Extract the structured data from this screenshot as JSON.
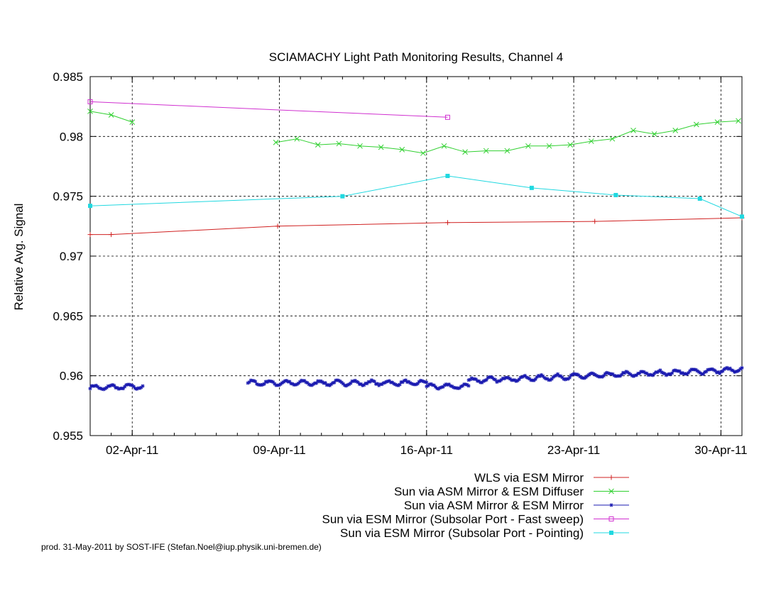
{
  "chart_data": {
    "type": "line",
    "title": "SCIAMACHY Light Path Monitoring Results, Channel 4",
    "xlabel": "",
    "ylabel": "Relative Avg. Signal",
    "x_unit": "date",
    "xlim": [
      "2011-03-31T00:00",
      "2011-05-01T00:00"
    ],
    "ylim": [
      0.955,
      0.985
    ],
    "grid": true,
    "legend_position": "bottom-right",
    "x_ticks": [
      {
        "date": "2011-04-02T00:00",
        "label": "02-Apr-11"
      },
      {
        "date": "2011-04-09T00:00",
        "label": "09-Apr-11"
      },
      {
        "date": "2011-04-16T00:00",
        "label": "16-Apr-11"
      },
      {
        "date": "2011-04-23T00:00",
        "label": "23-Apr-11"
      },
      {
        "date": "2011-04-30T00:00",
        "label": "30-Apr-11"
      }
    ],
    "y_ticks": [
      "0.955",
      "0.96",
      "0.965",
      "0.97",
      "0.975",
      "0.98",
      "0.985"
    ],
    "series": [
      {
        "name": "WLS via ESM Mirror",
        "color": "#d02020",
        "marker": "plus",
        "points": [
          [
            "2011-03-31T00:00",
            0.9718
          ],
          [
            "2011-04-01T00:00",
            0.9718
          ],
          [
            "2011-04-08T22:00",
            0.9725
          ],
          [
            "2011-04-17T00:00",
            0.9728
          ],
          [
            "2011-04-24T00:00",
            0.9729
          ],
          [
            "2011-05-01T00:00",
            0.9732
          ]
        ]
      },
      {
        "name": "Sun via ASM Mirror & ESM Diffuser",
        "color": "#30d030",
        "marker": "cross",
        "segments": [
          [
            [
              "2011-03-31T00:00",
              0.9821
            ],
            [
              "2011-04-01T00:00",
              0.9818
            ],
            [
              "2011-04-02T00:00",
              0.9812
            ]
          ],
          [
            [
              "2011-04-08T20:00",
              0.9795
            ],
            [
              "2011-04-09T20:00",
              0.9798
            ],
            [
              "2011-04-10T20:00",
              0.9793
            ],
            [
              "2011-04-11T20:00",
              0.9794
            ],
            [
              "2011-04-12T20:00",
              0.9792
            ],
            [
              "2011-04-13T20:00",
              0.9791
            ],
            [
              "2011-04-14T20:00",
              0.9789
            ],
            [
              "2011-04-15T20:00",
              0.9786
            ],
            [
              "2011-04-16T20:00",
              0.9792
            ],
            [
              "2011-04-17T20:00",
              0.9787
            ],
            [
              "2011-04-18T20:00",
              0.9788
            ],
            [
              "2011-04-19T20:00",
              0.9788
            ],
            [
              "2011-04-20T20:00",
              0.9792
            ],
            [
              "2011-04-21T20:00",
              0.9792
            ],
            [
              "2011-04-22T20:00",
              0.9793
            ],
            [
              "2011-04-23T20:00",
              0.9796
            ],
            [
              "2011-04-24T20:00",
              0.9798
            ],
            [
              "2011-04-25T20:00",
              0.9805
            ],
            [
              "2011-04-26T20:00",
              0.9802
            ],
            [
              "2011-04-27T20:00",
              0.9805
            ],
            [
              "2011-04-28T20:00",
              0.981
            ],
            [
              "2011-04-29T20:00",
              0.9812
            ],
            [
              "2011-04-30T20:00",
              0.9813
            ]
          ]
        ]
      },
      {
        "name": "Sun via ASM Mirror & ESM Mirror",
        "color": "#1a1ab0",
        "marker": "star",
        "dense": true,
        "segments": [
          {
            "start": "2011-03-31T00:00",
            "end": "2011-04-02T12:00",
            "base": 0.959,
            "trend": 0.0001
          },
          {
            "start": "2011-04-07T12:00",
            "end": "2011-04-16T00:00",
            "base": 0.9594,
            "trend": 0.0
          },
          {
            "start": "2011-04-16T00:00",
            "end": "2011-04-18T00:00",
            "base": 0.9591,
            "trend": 0.0
          },
          {
            "start": "2011-04-18T00:00",
            "end": "2011-05-01T00:00",
            "base": 0.9596,
            "trend": 0.0009
          }
        ]
      },
      {
        "name": "Sun via ESM Mirror (Subsolar Port - Fast sweep)",
        "color": "#d030d0",
        "marker": "box",
        "points": [
          [
            "2011-03-31T00:00",
            0.9829
          ],
          [
            "2011-04-17T00:00",
            0.9816
          ]
        ]
      },
      {
        "name": "Sun via ESM Mirror (Subsolar Port - Pointing)",
        "color": "#20d8e0",
        "marker": "filled-box",
        "points": [
          [
            "2011-03-31T00:00",
            0.9742
          ],
          [
            "2011-04-12T00:00",
            0.975
          ],
          [
            "2011-04-17T00:00",
            0.9767
          ],
          [
            "2011-04-21T00:00",
            0.9757
          ],
          [
            "2011-04-25T00:00",
            0.9751
          ],
          [
            "2011-04-29T00:00",
            0.9748
          ],
          [
            "2011-05-01T00:00",
            0.9733
          ]
        ]
      }
    ]
  },
  "footer": "prod. 31-May-2011 by SOST-IFE (Stefan.Noel@iup.physik.uni-bremen.de)"
}
